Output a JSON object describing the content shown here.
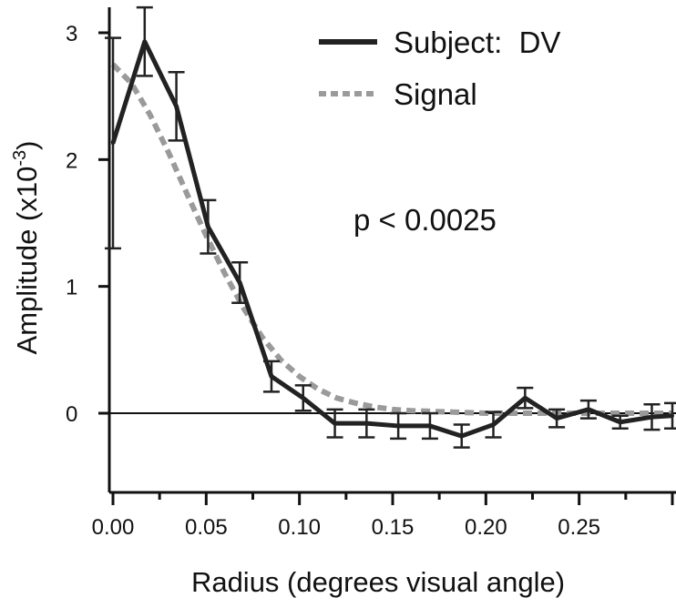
{
  "chart_data": {
    "type": "line",
    "xlabel": "Radius (degrees visual angle)",
    "ylabel": "Amplitude (x10",
    "ylabel_sup": "-3",
    "ylabel_close": ")",
    "xlim": [
      0.0,
      0.3
    ],
    "ylim": [
      -0.65,
      3.1
    ],
    "x_ticks": [
      0.0,
      0.05,
      0.1,
      0.15,
      0.2,
      0.25
    ],
    "x_tick_labels": [
      "0.00",
      "0.05",
      "0.10",
      "0.15",
      "0.20",
      "0.25"
    ],
    "y_ticks": [
      0,
      1,
      2,
      3
    ],
    "y_tick_labels": [
      "0",
      "1",
      "2",
      "3"
    ],
    "zero_line": true,
    "grid": false,
    "legend_position": "top-right",
    "annotation": "p < 0.0025",
    "series": [
      {
        "name": "Subject:  DV",
        "style": "solid",
        "color": "#222222",
        "x": [
          0.0,
          0.017,
          0.034,
          0.051,
          0.068,
          0.085,
          0.102,
          0.119,
          0.136,
          0.153,
          0.17,
          0.187,
          0.204,
          0.221,
          0.238,
          0.255,
          0.272,
          0.289,
          0.3
        ],
        "y": [
          2.13,
          2.93,
          2.42,
          1.47,
          1.03,
          0.29,
          0.12,
          -0.08,
          -0.08,
          -0.1,
          -0.1,
          -0.18,
          -0.09,
          0.12,
          -0.04,
          0.03,
          -0.07,
          -0.03,
          -0.02
        ],
        "err": [
          0.83,
          0.27,
          0.27,
          0.21,
          0.16,
          0.12,
          0.1,
          0.11,
          0.11,
          0.1,
          0.1,
          0.09,
          0.1,
          0.08,
          0.07,
          0.07,
          0.05,
          0.1,
          0.1
        ]
      },
      {
        "name": "Signal",
        "style": "dashed",
        "color": "#9a9a9a",
        "x": [
          0.0,
          0.01,
          0.02,
          0.03,
          0.04,
          0.05,
          0.06,
          0.07,
          0.08,
          0.09,
          0.1,
          0.11,
          0.12,
          0.13,
          0.14,
          0.15,
          0.16,
          0.18,
          0.2,
          0.22,
          0.24,
          0.26,
          0.28,
          0.3
        ],
        "y": [
          2.75,
          2.6,
          2.35,
          2.05,
          1.72,
          1.4,
          1.1,
          0.83,
          0.6,
          0.42,
          0.29,
          0.19,
          0.12,
          0.08,
          0.05,
          0.03,
          0.02,
          0.01,
          0.0,
          0.0,
          0.0,
          0.0,
          0.0,
          0.0
        ]
      }
    ]
  }
}
